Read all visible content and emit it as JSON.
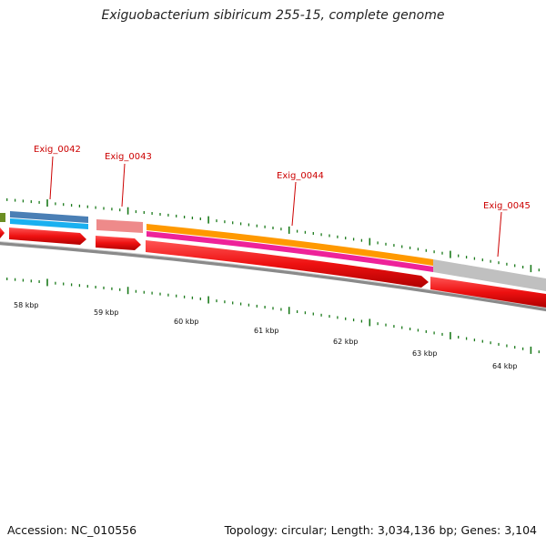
{
  "title": "Exiguobacterium sibiricum 255-15, complete genome",
  "accession": "Accession: NC_010556",
  "stats": "Topology: circular; Length: 3,034,136 bp; Genes: 3,104",
  "gene_labels": [
    "Exig_0042",
    "Exig_0043",
    "Exig_0044",
    "Exig_0045"
  ],
  "kbp_labels": [
    "58 kbp",
    "59 kbp",
    "60 kbp",
    "61 kbp",
    "62 kbp",
    "63 kbp",
    "64 kbp"
  ],
  "colors": {
    "gene_arrow": "#ee1111",
    "label_red": "#cc0000",
    "tick_green": "#1a7a1a",
    "backbone": "#777777",
    "track_olive": "#6b8e23",
    "track_steelblue": "#4a7fb5",
    "track_cyan": "#1ab0f0",
    "track_pink": "#ee8a8a",
    "track_orange": "#ff9900",
    "track_magenta": "#ee2299",
    "track_gray": "#c0c0c0"
  }
}
